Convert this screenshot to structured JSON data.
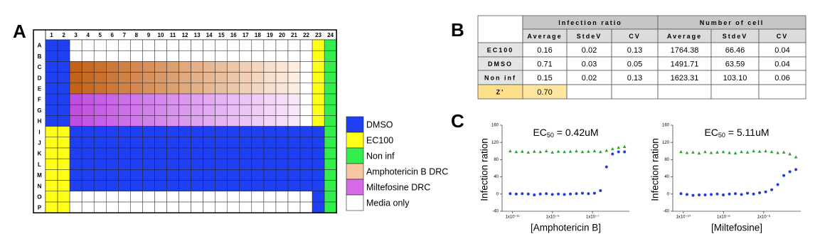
{
  "plate": {
    "panel_label": "A",
    "columns": [
      "1",
      "2",
      "3",
      "4",
      "5",
      "6",
      "7",
      "8",
      "9",
      "10",
      "11",
      "12",
      "13",
      "14",
      "15",
      "16",
      "17",
      "18",
      "19",
      "20",
      "21",
      "22",
      "23",
      "24"
    ],
    "rows": [
      "A",
      "B",
      "C",
      "D",
      "E",
      "F",
      "G",
      "H",
      "I",
      "J",
      "K",
      "L",
      "M",
      "N",
      "O",
      "P"
    ],
    "legend": [
      {
        "label": "DMSO",
        "color": "#1f3ff2"
      },
      {
        "label": "EC100",
        "color": "#ffff1a"
      },
      {
        "label": "Non inf",
        "color": "#33ee4d"
      },
      {
        "label": "Amphotericin B DRC",
        "color": "#f8c7a2",
        "gradient": [
          "#c2631a",
          "#fdeee2"
        ]
      },
      {
        "label": "Miltefosine DRC",
        "color": "#d86ae8",
        "gradient": [
          "#c04ee2",
          "#f8e6fb"
        ]
      },
      {
        "label": "Media only",
        "color": "#ffffff"
      }
    ]
  },
  "table": {
    "panel_label": "B",
    "group_headers": [
      "Infection ratio",
      "Number of cell"
    ],
    "sub_headers": [
      "Average",
      "StdeV",
      "CV",
      "Average",
      "StdeV",
      "CV"
    ],
    "rows": [
      [
        "EC100",
        "0.16",
        "0.02",
        "0.13",
        "1764.38",
        "66.46",
        "0.04"
      ],
      [
        "DMSO",
        "0.71",
        "0.03",
        "0.05",
        "1491.71",
        "63.59",
        "0.04"
      ],
      [
        "Non inf",
        "0.15",
        "0.02",
        "0.13",
        "1623.31",
        "103.10",
        "0.06"
      ],
      [
        "Z'",
        "0.70"
      ]
    ]
  },
  "panel_c_label": "C",
  "chart_data": [
    {
      "type": "scatter",
      "annotation": {
        "prefix": "EC",
        "subscript": "50",
        "text": " = 0.42uM"
      },
      "xlabel": "[Amphotericin B]",
      "ylabel": "Infection ration",
      "log_x": true,
      "xlim": [
        3e-12,
        7e-06
      ],
      "xticks": [
        {
          "value": 1e-11,
          "label": "1x10⁻¹¹"
        },
        {
          "value": 1e-09,
          "label": "1x10⁻⁹"
        },
        {
          "value": 1e-07,
          "label": "1x10⁻⁷"
        }
      ],
      "ylim": [
        -40,
        160
      ],
      "yticks": [
        -40,
        0,
        40,
        80,
        120,
        160
      ],
      "x": [
        7.62939453125e-12,
        1.52587890625e-11,
        3.0517578125e-11,
        6.103515625e-11,
        1.220703125e-10,
        2.44140625e-10,
        4.8828125e-10,
        9.765625e-10,
        1.953125e-09,
        3.90625e-09,
        7.8125e-09,
        1.5625e-08,
        3.125e-08,
        6.25e-08,
        1.25e-07,
        2.5e-07,
        5e-07,
        1e-06,
        2e-06,
        4e-06
      ],
      "series": [
        {
          "color": "#2a9d2a",
          "marker": "triangle",
          "values": [
            100,
            98,
            99,
            97,
            99,
            98,
            100,
            97,
            99,
            98,
            99,
            100,
            98,
            99,
            100,
            98,
            101,
            105,
            108,
            110
          ]
        },
        {
          "color": "#1f3fd8",
          "marker": "circle",
          "values": [
            1,
            0,
            1,
            0,
            -2,
            0,
            1,
            -1,
            0,
            -1,
            0,
            1,
            2,
            1,
            2,
            8,
            63,
            93,
            98,
            98
          ]
        }
      ]
    },
    {
      "type": "scatter",
      "annotation": {
        "prefix": "EC",
        "subscript": "50",
        "text": " = 5.11uM"
      },
      "xlabel": "[Miltefosine]",
      "ylabel": "Infection ration",
      "log_x": true,
      "xlim": [
        3e-11,
        7e-05
      ],
      "xticks": [
        {
          "value": 1e-10,
          "label": "1x10⁻¹⁰"
        },
        {
          "value": 1e-08,
          "label": "1x10⁻⁸"
        },
        {
          "value": 1e-06,
          "label": "1x10⁻⁶"
        }
      ],
      "ylim": [
        -40,
        160
      ],
      "yticks": [
        -40,
        0,
        40,
        80,
        120,
        160
      ],
      "x": [
        7.62939453125e-11,
        1.52587890625e-10,
        3.0517578125e-10,
        6.103515625e-10,
        1.220703125e-09,
        2.44140625e-09,
        4.8828125e-09,
        9.765625e-09,
        1.953125e-08,
        3.90625e-08,
        7.8125e-08,
        1.5625e-07,
        3.125e-07,
        6.25e-07,
        1.25e-06,
        2.5e-06,
        5e-06,
        1e-05,
        2e-05,
        4e-05
      ],
      "series": [
        {
          "color": "#2a9d2a",
          "marker": "triangle",
          "values": [
            98,
            96,
            97,
            95,
            98,
            96,
            97,
            98,
            96,
            95,
            98,
            97,
            100,
            99,
            100,
            98,
            96,
            97,
            93,
            86
          ]
        },
        {
          "color": "#1f3fd8",
          "marker": "circle",
          "values": [
            1,
            -1,
            -3,
            -2,
            -2,
            -1,
            0,
            -2,
            0,
            1,
            -1,
            2,
            0,
            3,
            5,
            10,
            22,
            43,
            52,
            57
          ]
        }
      ]
    }
  ]
}
